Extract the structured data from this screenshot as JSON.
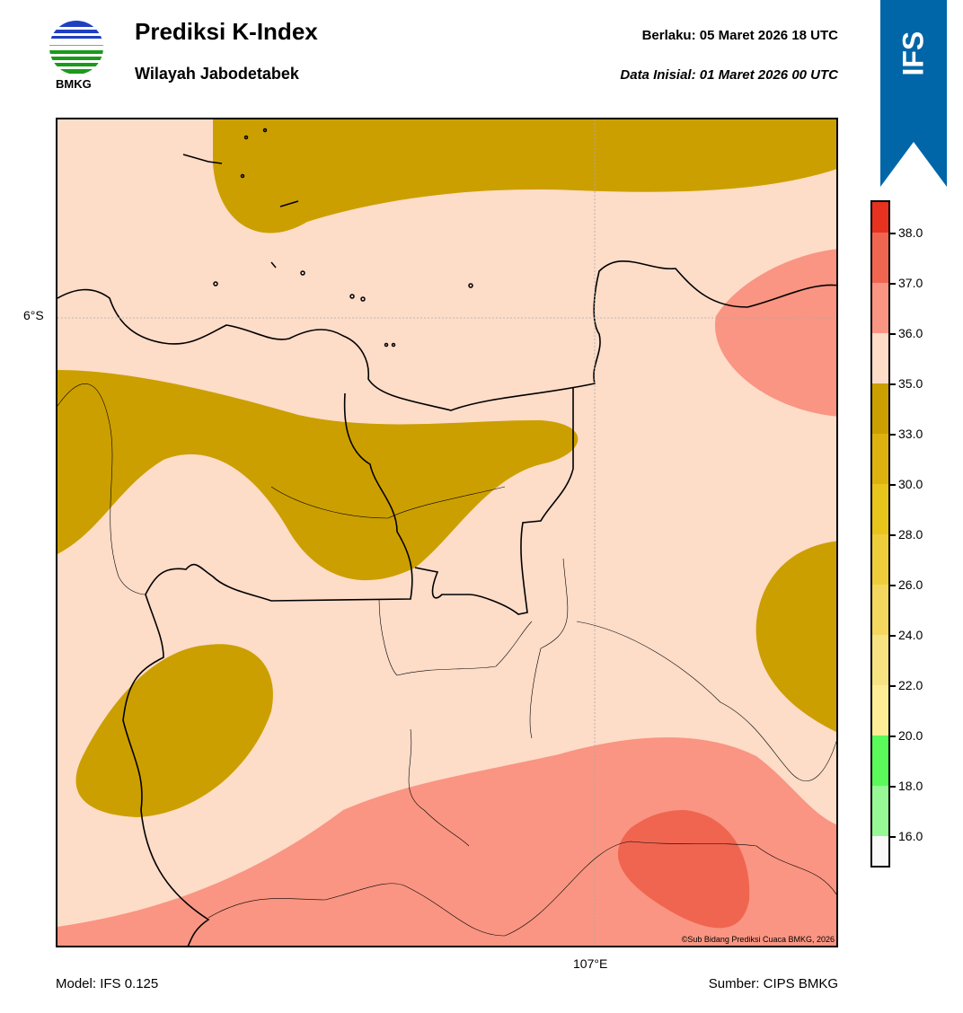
{
  "header": {
    "title": "Prediksi K-Index",
    "subtitle": "Wilayah Jabodetabek",
    "valid_label": "Berlaku:  05 Maret 2026 18 UTC",
    "init_label": "Data Inisial:  01 Maret 2026 00 UTC",
    "logo_text": "BMKG",
    "model_badge": "IFS"
  },
  "map": {
    "lat_label": "6°S",
    "lon_label": "107°E",
    "copyright": "©Sub Bidang Prediksi Cuaca BMKG, 2026"
  },
  "footer": {
    "model": "Model: IFS 0.125",
    "source": "Sumber: CIPS BMKG"
  },
  "colorbar": {
    "ticks": [
      "16.0",
      "18.0",
      "20.0",
      "22.0",
      "24.0",
      "26.0",
      "28.0",
      "30.0",
      "33.0",
      "35.0",
      "36.0",
      "37.0",
      "38.0"
    ],
    "colors": [
      "#f9f9f9",
      "#96f996",
      "#5afa5a",
      "#fdee96",
      "#f8e382",
      "#f3d75f",
      "#efcd3a",
      "#e9c41a",
      "#ddb20f",
      "#cc9f00",
      "#fddcc8",
      "#f99582",
      "#f06550",
      "#e73220"
    ]
  }
}
